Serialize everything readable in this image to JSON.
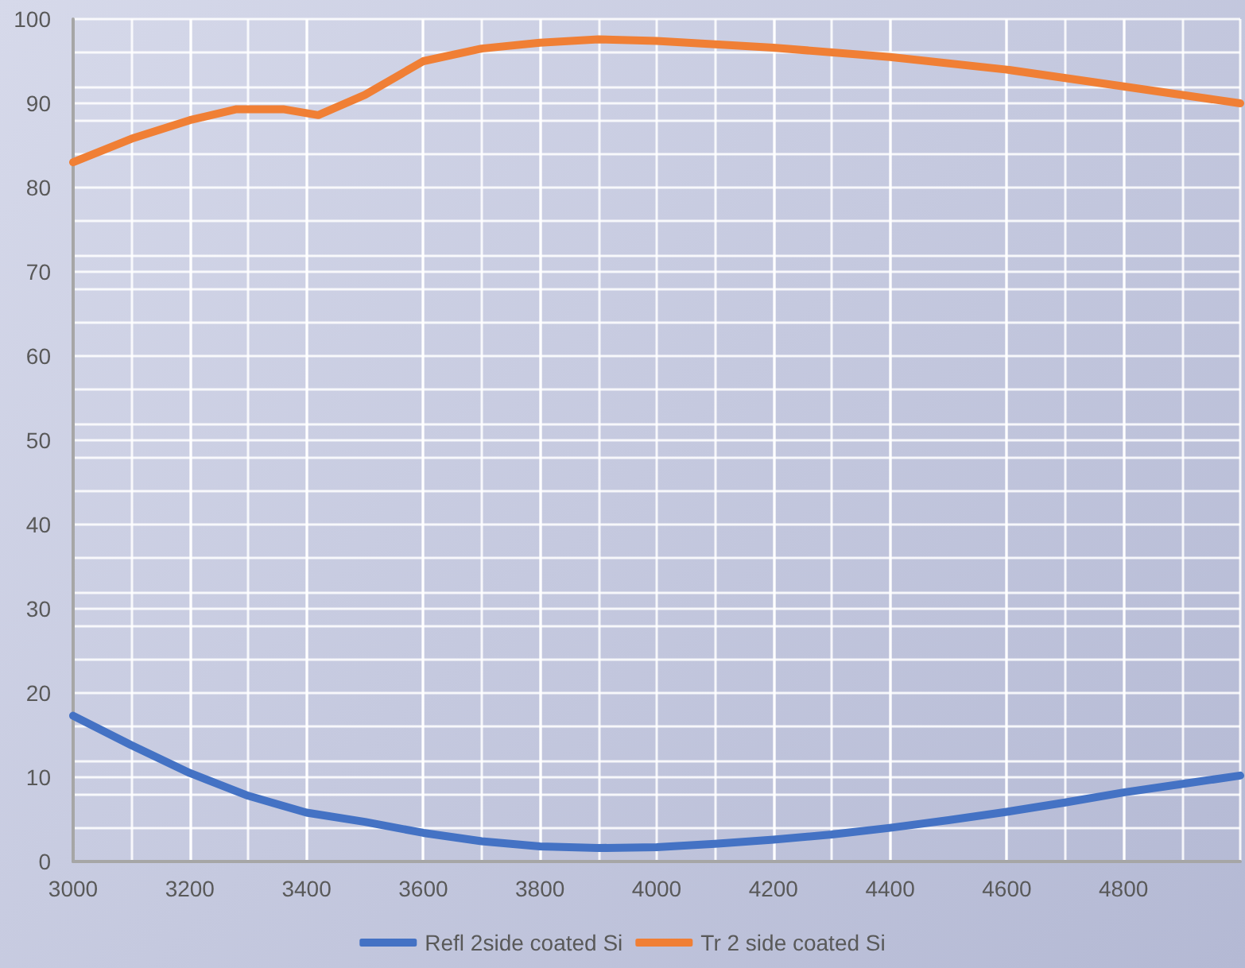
{
  "chart_data": {
    "type": "line",
    "x": [
      3000,
      3100,
      3200,
      3300,
      3400,
      3500,
      3600,
      3700,
      3800,
      3900,
      4000,
      4100,
      4200,
      4300,
      4400,
      4500,
      4600,
      4700,
      4800,
      4900,
      5000
    ],
    "series": [
      {
        "name": "Refl 2side coated Si",
        "color": "#4472c4",
        "values": [
          17.3,
          13.8,
          10.5,
          7.8,
          5.8,
          4.7,
          3.4,
          2.4,
          1.8,
          1.6,
          1.7,
          2.1,
          2.6,
          3.2,
          4.0,
          4.9,
          5.9,
          7.0,
          8.2,
          9.2,
          10.2
        ]
      },
      {
        "name": "Tr 2 side coated Si",
        "color": "#f07f35",
        "x": [
          3000,
          3100,
          3200,
          3280,
          3360,
          3420,
          3500,
          3600,
          3700,
          3800,
          3900,
          4000,
          4200,
          4400,
          4600,
          4800,
          5000
        ],
        "values": [
          83,
          85.8,
          88.0,
          89.3,
          89.3,
          88.6,
          91,
          95,
          96.5,
          97.2,
          97.6,
          97.4,
          96.6,
          95.5,
          94,
          92,
          90
        ]
      }
    ],
    "xlim": [
      3000,
      5000
    ],
    "xticks": [
      3000,
      3200,
      3400,
      3600,
      3800,
      4000,
      4200,
      4400,
      4600,
      4800,
      {
        "value": 5000,
        "label": null
      }
    ],
    "ylim": [
      0,
      100
    ],
    "yticks": [
      0,
      10,
      20,
      30,
      40,
      50,
      60,
      70,
      80,
      90,
      100
    ],
    "grid": true,
    "legend": "bottom",
    "marker": "none",
    "line_style": "solid"
  }
}
